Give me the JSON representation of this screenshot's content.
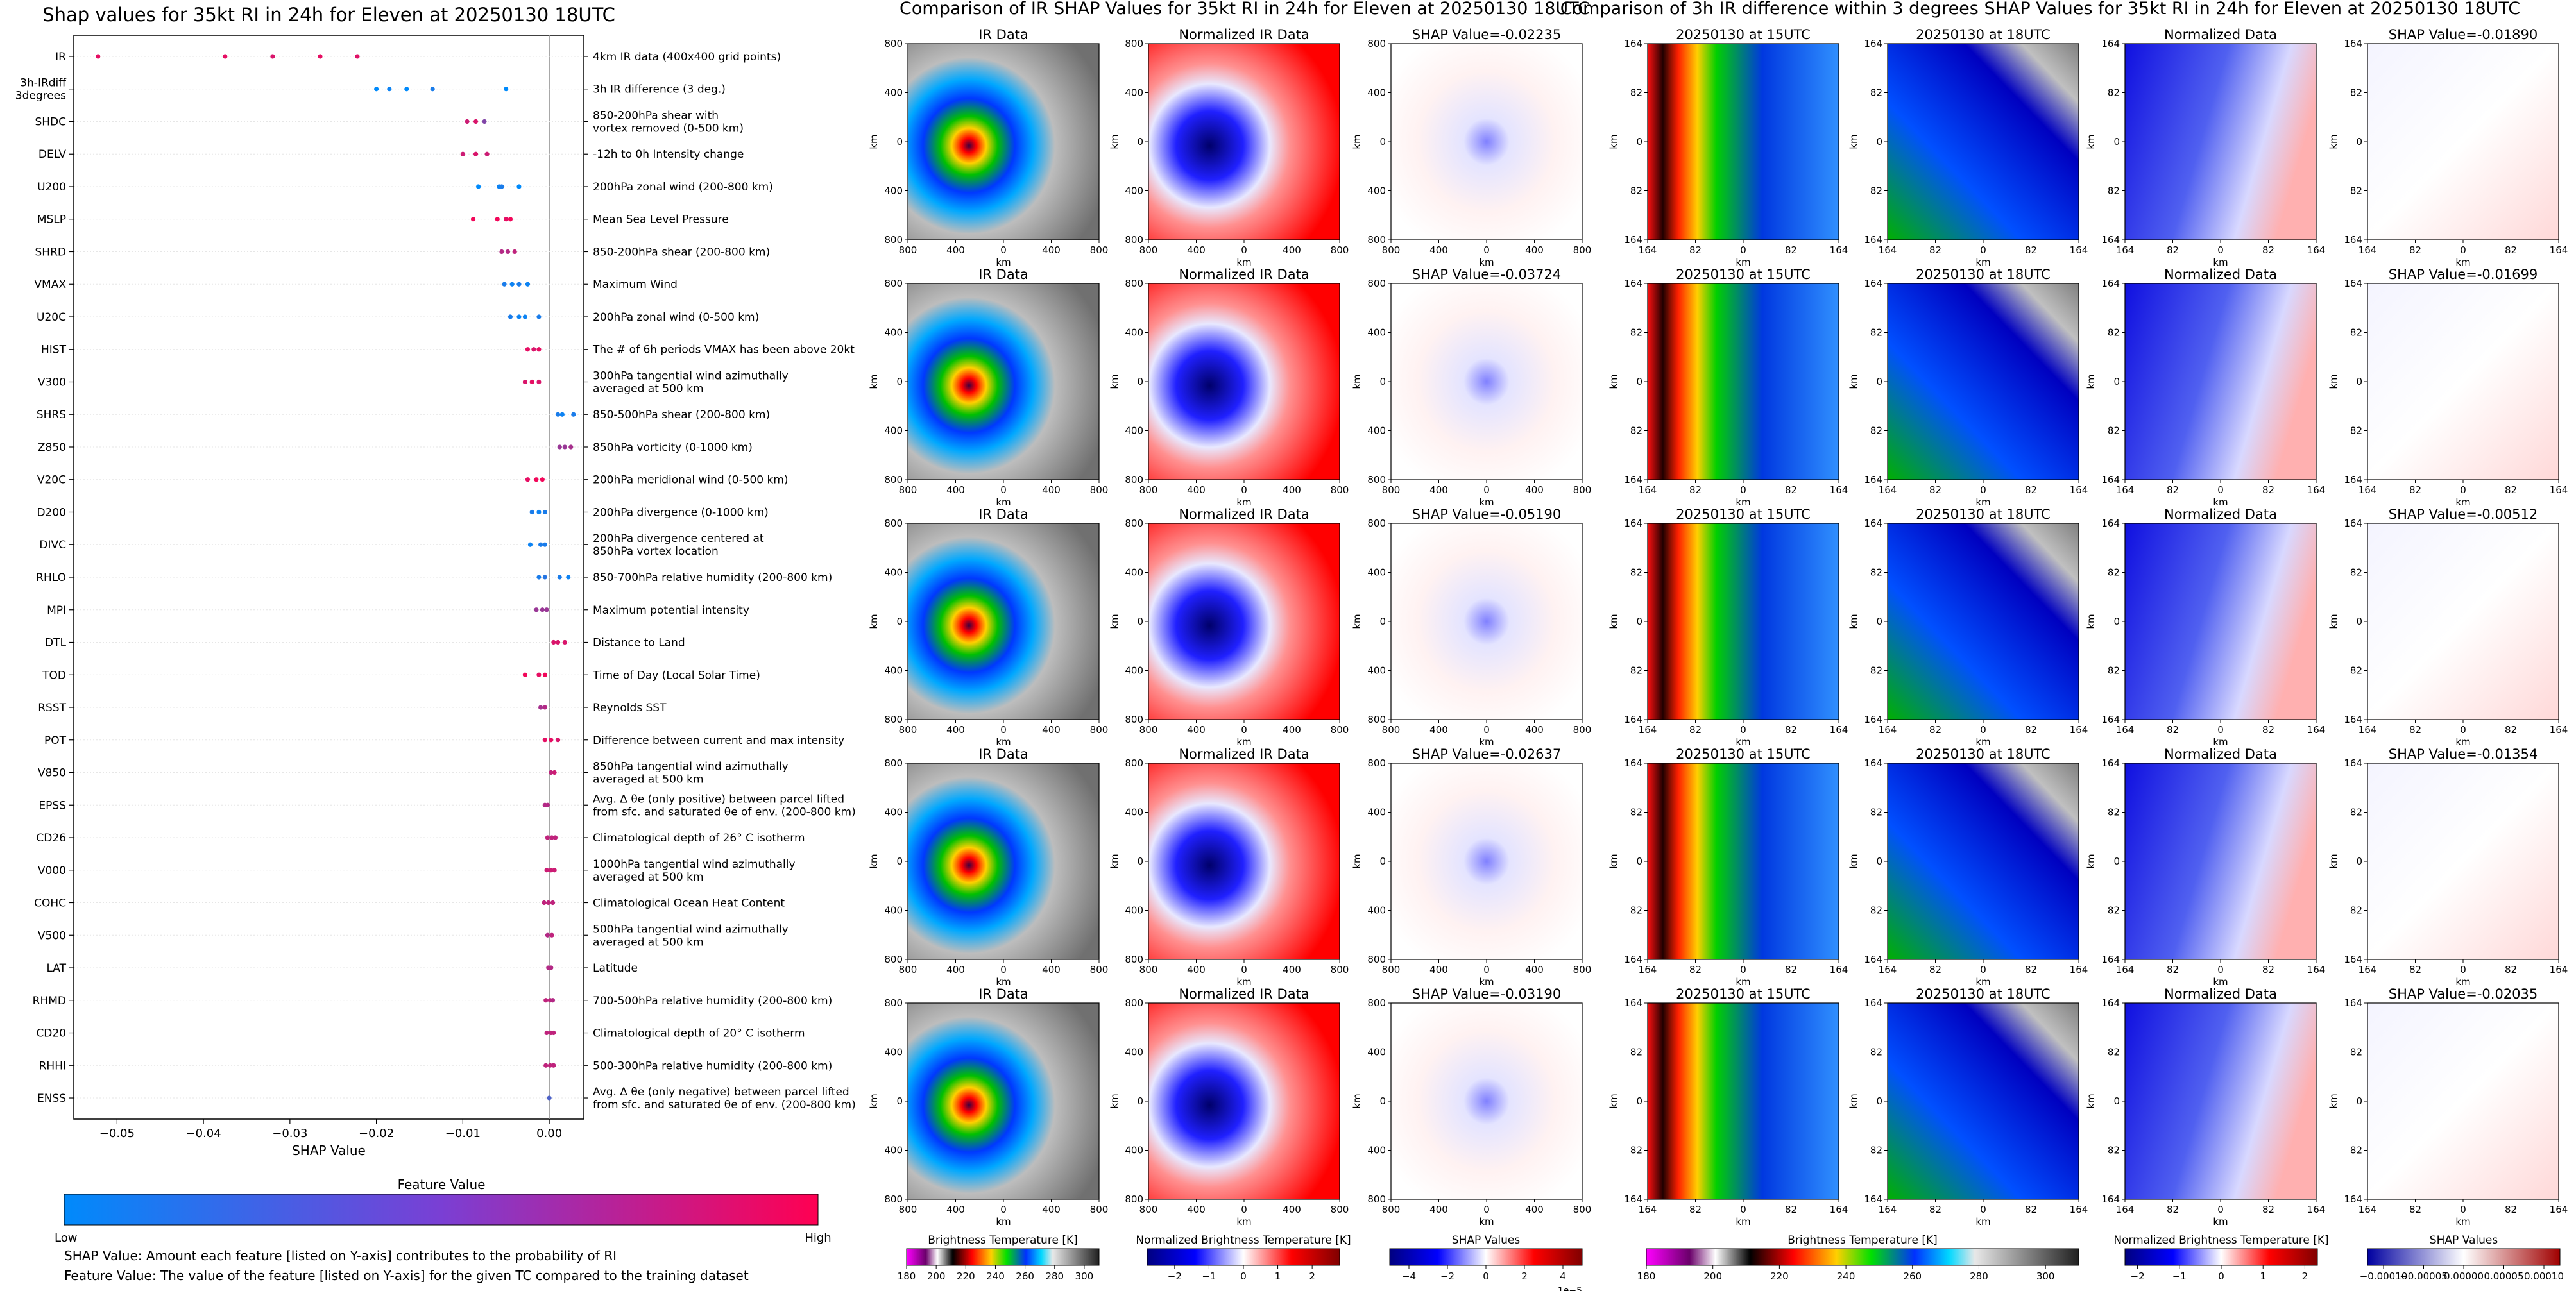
{
  "chart_data": [
    {
      "type": "scatter",
      "title": "Shap values for 35kt RI in 24h for Eleven at 20250130 18UTC",
      "xlabel": "SHAP Value",
      "xlim": [
        -0.055,
        0.004
      ],
      "xticks": [
        -0.05,
        -0.04,
        -0.03,
        -0.02,
        -0.01,
        0.0
      ],
      "xtick_labels": [
        "−0.05",
        "−0.04",
        "−0.03",
        "−0.02",
        "−0.01",
        "0.00"
      ],
      "grid": false,
      "colorbar": {
        "title": "Feature Value",
        "low_label": "Low",
        "high_label": "High",
        "low_color": "#008afb",
        "high_color": "#ff0052"
      },
      "features": [
        {
          "name": "IR",
          "desc": "4km IR data (400x400 grid points)",
          "points": [
            [
              -0.0522,
              0.9
            ],
            [
              -0.0375,
              0.9
            ],
            [
              -0.032,
              0.85
            ],
            [
              -0.0265,
              0.9
            ],
            [
              -0.0222,
              0.88
            ]
          ]
        },
        {
          "name": "3h-IRdiff\n3degrees",
          "desc": "3h IR difference (3 deg.)",
          "points": [
            [
              -0.02,
              0.0
            ],
            [
              -0.0185,
              0.05
            ],
            [
              -0.0165,
              0.0
            ],
            [
              -0.0135,
              0.1
            ],
            [
              -0.005,
              0.0
            ]
          ]
        },
        {
          "name": "SHDC",
          "desc": "850-200hPa shear with\nvortex removed (0-500 km)",
          "points": [
            [
              -0.0095,
              0.8
            ],
            [
              -0.0085,
              0.85
            ],
            [
              -0.0075,
              0.5
            ]
          ]
        },
        {
          "name": "DELV",
          "desc": "-12h to 0h Intensity change",
          "points": [
            [
              -0.01,
              0.8
            ],
            [
              -0.0085,
              0.85
            ],
            [
              -0.0072,
              0.8
            ]
          ]
        },
        {
          "name": "U200",
          "desc": "200hPa zonal wind (200-800 km)",
          "points": [
            [
              -0.0082,
              0.0
            ],
            [
              -0.0058,
              0.05
            ],
            [
              -0.0055,
              0.1
            ],
            [
              -0.0035,
              0.0
            ]
          ]
        },
        {
          "name": "MSLP",
          "desc": "Mean Sea Level Pressure",
          "points": [
            [
              -0.0088,
              0.95
            ],
            [
              -0.006,
              0.95
            ],
            [
              -0.005,
              0.9
            ],
            [
              -0.0045,
              0.95
            ]
          ]
        },
        {
          "name": "SHRD",
          "desc": "850-200hPa shear (200-800 km)",
          "points": [
            [
              -0.0055,
              0.7
            ],
            [
              -0.0048,
              0.7
            ],
            [
              -0.004,
              0.75
            ]
          ]
        },
        {
          "name": "VMAX",
          "desc": "Maximum Wind",
          "points": [
            [
              -0.0052,
              0.1
            ],
            [
              -0.0043,
              0.05
            ],
            [
              -0.0035,
              0.1
            ],
            [
              -0.0025,
              0.05
            ]
          ]
        },
        {
          "name": "U20C",
          "desc": "200hPa zonal wind (0-500 km)",
          "points": [
            [
              -0.0045,
              0.1
            ],
            [
              -0.0035,
              0.05
            ],
            [
              -0.0028,
              0.05
            ],
            [
              -0.0012,
              0.1
            ]
          ]
        },
        {
          "name": "HIST",
          "desc": "The # of 6h periods VMAX has been above 20kt",
          "points": [
            [
              -0.0025,
              0.9
            ],
            [
              -0.0018,
              0.85
            ],
            [
              -0.0012,
              0.9
            ]
          ]
        },
        {
          "name": "V300",
          "desc": "300hPa tangential wind azimuthally\naveraged at 500 km",
          "points": [
            [
              -0.0028,
              0.85
            ],
            [
              -0.002,
              0.9
            ],
            [
              -0.0012,
              0.85
            ]
          ]
        },
        {
          "name": "SHRS",
          "desc": "850-500hPa shear (200-800 km)",
          "points": [
            [
              0.001,
              0.1
            ],
            [
              0.0015,
              0.05
            ],
            [
              0.0028,
              0.1
            ]
          ]
        },
        {
          "name": "Z850",
          "desc": "850hPa vorticity (0-1000 km)",
          "points": [
            [
              0.0012,
              0.6
            ],
            [
              0.0018,
              0.6
            ],
            [
              0.0025,
              0.65
            ]
          ]
        },
        {
          "name": "V20C",
          "desc": "200hPa meridional wind (0-500 km)",
          "points": [
            [
              -0.0025,
              0.9
            ],
            [
              -0.0015,
              0.95
            ],
            [
              -0.0008,
              0.95
            ]
          ]
        },
        {
          "name": "D200",
          "desc": "200hPa divergence (0-1000 km)",
          "points": [
            [
              -0.002,
              0.1
            ],
            [
              -0.0012,
              0.05
            ],
            [
              -0.0005,
              0.1
            ]
          ]
        },
        {
          "name": "DIVC",
          "desc": "200hPa divergence centered at\n850hPa vortex location",
          "points": [
            [
              -0.0022,
              0.05
            ],
            [
              -0.001,
              0.1
            ],
            [
              -0.0005,
              0.1
            ]
          ]
        },
        {
          "name": "RHLO",
          "desc": "850-700hPa relative humidity (200-800 km)",
          "points": [
            [
              -0.0012,
              0.1
            ],
            [
              -0.0005,
              0.15
            ],
            [
              0.0012,
              0.1
            ],
            [
              0.0022,
              0.05
            ]
          ]
        },
        {
          "name": "MPI",
          "desc": "Maximum potential intensity",
          "points": [
            [
              -0.0015,
              0.6
            ],
            [
              -0.0008,
              0.6
            ],
            [
              -0.0003,
              0.6
            ]
          ]
        },
        {
          "name": "DTL",
          "desc": "Distance to Land",
          "points": [
            [
              0.0005,
              0.85
            ],
            [
              0.001,
              0.85
            ],
            [
              0.0018,
              0.85
            ]
          ]
        },
        {
          "name": "TOD",
          "desc": "Time of Day (Local Solar Time)",
          "points": [
            [
              -0.0028,
              0.95
            ],
            [
              -0.0012,
              0.9
            ],
            [
              -0.0005,
              0.95
            ]
          ]
        },
        {
          "name": "RSST",
          "desc": "Reynolds SST",
          "points": [
            [
              -0.001,
              0.65
            ],
            [
              -0.0005,
              0.7
            ]
          ]
        },
        {
          "name": "POT",
          "desc": "Difference between current and max intensity",
          "points": [
            [
              -0.0005,
              0.9
            ],
            [
              0.0002,
              0.9
            ],
            [
              0.001,
              0.85
            ]
          ]
        },
        {
          "name": "V850",
          "desc": "850hPa tangential wind azimuthally\naveraged at 500 km",
          "points": [
            [
              0.0002,
              0.75
            ],
            [
              0.0006,
              0.8
            ]
          ]
        },
        {
          "name": "EPSS",
          "desc": "Avg. Δ θe (only positive) between parcel lifted\nfrom sfc. and saturated θe of env. (200-800 km)",
          "points": [
            [
              -0.0005,
              0.7
            ],
            [
              -0.0002,
              0.7
            ]
          ]
        },
        {
          "name": "CD26",
          "desc": "Climatological depth of 26° C isotherm",
          "points": [
            [
              -0.0002,
              0.75
            ],
            [
              0.0003,
              0.75
            ],
            [
              0.0007,
              0.75
            ]
          ]
        },
        {
          "name": "V000",
          "desc": "1000hPa tangential wind azimuthally\naveraged at 500 km",
          "points": [
            [
              -0.0003,
              0.8
            ],
            [
              0.0002,
              0.8
            ],
            [
              0.0006,
              0.8
            ]
          ]
        },
        {
          "name": "COHC",
          "desc": "Climatological Ocean Heat Content",
          "points": [
            [
              -0.0006,
              0.75
            ],
            [
              -0.0001,
              0.75
            ],
            [
              0.0004,
              0.75
            ]
          ]
        },
        {
          "name": "V500",
          "desc": "500hPa tangential wind azimuthally\naveraged at 500 km",
          "points": [
            [
              -0.0002,
              0.7
            ],
            [
              0.0003,
              0.75
            ]
          ]
        },
        {
          "name": "LAT",
          "desc": "Latitude",
          "points": [
            [
              -0.0001,
              0.7
            ],
            [
              0.0002,
              0.7
            ]
          ]
        },
        {
          "name": "RHMD",
          "desc": "700-500hPa relative humidity (200-800 km)",
          "points": [
            [
              -0.0004,
              0.75
            ],
            [
              0.0001,
              0.75
            ],
            [
              0.0004,
              0.7
            ]
          ]
        },
        {
          "name": "CD20",
          "desc": "Climatological depth of 20° C isotherm",
          "points": [
            [
              -0.0003,
              0.75
            ],
            [
              0.0002,
              0.75
            ],
            [
              0.0005,
              0.75
            ]
          ]
        },
        {
          "name": "RHHI",
          "desc": "500-300hPa relative humidity (200-800 km)",
          "points": [
            [
              -0.0004,
              0.75
            ],
            [
              0.0001,
              0.75
            ],
            [
              0.0005,
              0.75
            ]
          ]
        },
        {
          "name": "ENSS",
          "desc": "Avg. Δ θe (only negative) between parcel lifted\nfrom sfc. and saturated θe of env. (200-800 km)",
          "points": [
            [
              0.0,
              0.3
            ]
          ]
        }
      ],
      "notes": [
        "SHAP Value: Amount each feature [listed on Y-axis] contributes to the probability of RI",
        "Feature Value: The value of the feature [listed on Y-axis] for the given TC compared to the training dataset"
      ]
    },
    {
      "type": "heatmap",
      "title": "Comparison of IR SHAP Values for 35kt RI in 24h for Eleven at 20250130 18UTC",
      "axis_label": "km",
      "column_titles": [
        "IR Data",
        "Normalized IR Data"
      ],
      "shap_titles": [
        "SHAP Value=-0.02235",
        "SHAP Value=-0.03724",
        "SHAP Value=-0.05190",
        "SHAP Value=-0.02637",
        "SHAP Value=-0.03190"
      ],
      "xtick_labels": [
        "800",
        "400",
        "0",
        "400",
        "800"
      ],
      "ytick_labels": [
        "800",
        "400",
        "0",
        "400",
        "800"
      ],
      "colorbars": [
        {
          "title": "Brightness Temperature [K]",
          "ticks": [
            "180",
            "200",
            "220",
            "240",
            "260",
            "280",
            "300"
          ],
          "range": [
            180,
            310
          ]
        },
        {
          "title": "Normalized Brightness Temperature [K]",
          "ticks": [
            "−2",
            "−1",
            "0",
            "1",
            "2"
          ],
          "range": [
            -2.8,
            2.8
          ]
        },
        {
          "title": "SHAP Values",
          "ticks": [
            "−4",
            "−2",
            "0",
            "2",
            "4"
          ],
          "range": [
            -5,
            5
          ],
          "exponent": "1e−5"
        }
      ]
    },
    {
      "type": "heatmap",
      "title": "Comparison of 3h IR difference within 3 degrees SHAP Values for 35kt RI in 24h for Eleven at 20250130 18UTC",
      "axis_label": "km",
      "column_titles": [
        "20250130 at 15UTC",
        "20250130 at 18UTC",
        "Normalized Data"
      ],
      "shap_titles": [
        "SHAP Value=-0.01890",
        "SHAP Value=-0.01699",
        "SHAP Value=-0.00512",
        "SHAP Value=-0.01354",
        "SHAP Value=-0.02035"
      ],
      "xtick_labels": [
        "164",
        "82",
        "0",
        "82",
        "164"
      ],
      "ytick_labels": [
        "164",
        "82",
        "0",
        "82",
        "164"
      ],
      "colorbars": [
        {
          "title": "Brightness Temperature [K]",
          "ticks": [
            "180",
            "200",
            "220",
            "240",
            "260",
            "280",
            "300"
          ],
          "range": [
            180,
            310
          ]
        },
        {
          "title": "Normalized Brightness Temperature [K]",
          "ticks": [
            "−2",
            "−1",
            "0",
            "1",
            "2"
          ],
          "range": [
            -2.3,
            2.3
          ]
        },
        {
          "title": "SHAP Values",
          "ticks": [
            "−0.00010",
            "−0.00005",
            "0.00000",
            "0.00005",
            "0.00010"
          ],
          "range": [
            -0.00012,
            0.00012
          ]
        }
      ]
    }
  ]
}
